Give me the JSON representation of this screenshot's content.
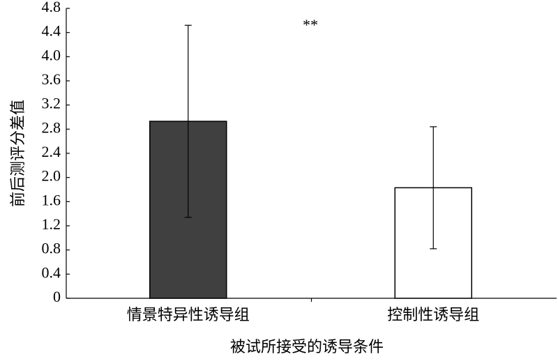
{
  "chart_data": {
    "type": "bar",
    "x_label": "被试所接受的诱导条件",
    "y_label": "前后测评分差值",
    "annotation": "**",
    "categories": [
      "情景特异性诱导组",
      "控制性诱导组"
    ],
    "values": [
      2.93,
      1.83
    ],
    "errors": [
      1.59,
      1.01
    ],
    "colors": [
      "#404040",
      "#ffffff"
    ],
    "ylim": [
      0,
      4.8
    ],
    "yticks": [
      0,
      0.4,
      0.8,
      1.2,
      1.6,
      {
        "value": 2.0,
        "label": "2.0"
      },
      2.4,
      2.8,
      3.2,
      3.6,
      {
        "value": 4.0,
        "label": "4.0"
      },
      4.4,
      4.8
    ]
  }
}
